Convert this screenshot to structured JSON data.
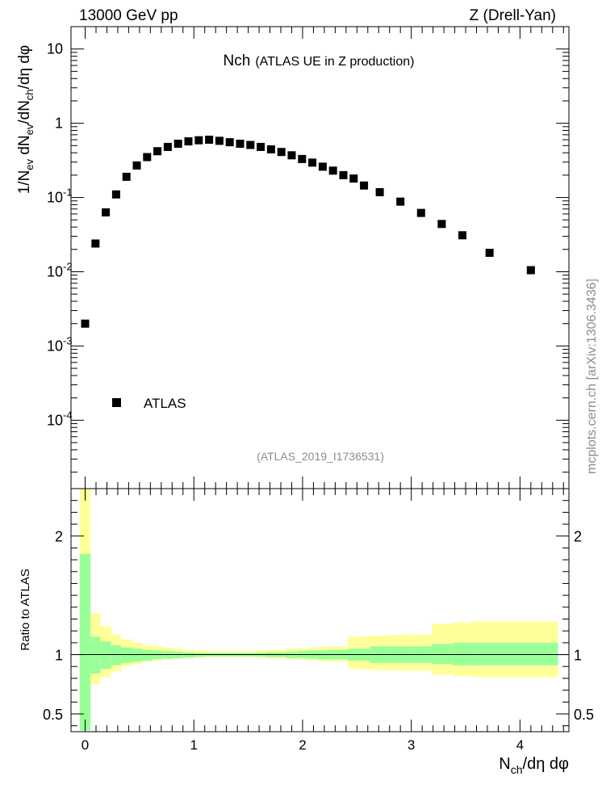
{
  "header": {
    "left": "13000 GeV pp",
    "right": "Z (Drell-Yan)"
  },
  "plot_title": {
    "main": "Nch",
    "sub": "(ATLAS UE in Z production)"
  },
  "analysis_tag": "(ATLAS_2019_I1736531)",
  "side_text": "mcplots.cern.ch [arXiv:1306.3436]",
  "legend": {
    "label": "ATLAS"
  },
  "colors": {
    "band_inner": "#99ff99",
    "band_outer": "#ffff99",
    "marker": "#000000"
  },
  "chart_data": [
    {
      "type": "scatter",
      "panel": "main",
      "xlabel": "N_ch/dη dφ",
      "ylabel": "1/N_ev dN_ev/dN_ch/dη dφ",
      "yscale": "log",
      "xlim": [
        -0.13,
        4.45
      ],
      "ylim": [
        1.2e-05,
        20
      ],
      "x_ticks": [
        "0",
        "1",
        "2",
        "3",
        "4"
      ],
      "y_ticks": [
        "10",
        "1",
        "10^-1",
        "10^-2",
        "10^-3",
        "10^-4"
      ],
      "series": [
        {
          "name": "ATLAS",
          "x": [
            0.0,
            0.095,
            0.19,
            0.285,
            0.38,
            0.475,
            0.57,
            0.665,
            0.76,
            0.855,
            0.95,
            1.045,
            1.14,
            1.235,
            1.33,
            1.425,
            1.52,
            1.615,
            1.71,
            1.805,
            1.9,
            1.995,
            2.09,
            2.185,
            2.28,
            2.375,
            2.47,
            2.565,
            2.71,
            2.9,
            3.09,
            3.28,
            3.47,
            3.72,
            4.1
          ],
          "y": [
            0.002,
            0.024,
            0.063,
            0.11,
            0.19,
            0.27,
            0.35,
            0.42,
            0.48,
            0.53,
            0.57,
            0.59,
            0.6,
            0.58,
            0.555,
            0.53,
            0.51,
            0.48,
            0.445,
            0.41,
            0.37,
            0.33,
            0.295,
            0.26,
            0.23,
            0.2,
            0.18,
            0.145,
            0.118,
            0.088,
            0.062,
            0.044,
            0.031,
            0.018,
            0.0105
          ]
        }
      ]
    },
    {
      "type": "area",
      "panel": "ratio",
      "xlabel": "N_ch/dη dφ",
      "ylabel": "Ratio to ATLAS",
      "ylim": [
        0.35,
        2.4
      ],
      "y_ticks": [
        "0.5",
        "1",
        "2"
      ],
      "reference_line": 1,
      "bins": [
        [
          -0.05,
          0.05
        ],
        [
          0.05,
          0.14
        ],
        [
          0.14,
          0.24
        ],
        [
          0.24,
          0.33
        ],
        [
          0.33,
          0.43
        ],
        [
          0.43,
          0.52
        ],
        [
          0.52,
          0.62
        ],
        [
          0.62,
          0.71
        ],
        [
          0.71,
          0.81
        ],
        [
          0.81,
          0.9
        ],
        [
          0.9,
          1.0
        ],
        [
          1.0,
          1.09
        ],
        [
          1.09,
          1.19
        ],
        [
          1.19,
          1.28
        ],
        [
          1.28,
          1.38
        ],
        [
          1.38,
          1.47
        ],
        [
          1.47,
          1.57
        ],
        [
          1.57,
          1.66
        ],
        [
          1.66,
          1.76
        ],
        [
          1.76,
          1.85
        ],
        [
          1.85,
          1.95
        ],
        [
          1.95,
          2.04
        ],
        [
          2.04,
          2.14
        ],
        [
          2.14,
          2.23
        ],
        [
          2.23,
          2.33
        ],
        [
          2.33,
          2.42
        ],
        [
          2.42,
          2.52
        ],
        [
          2.52,
          2.62
        ],
        [
          2.62,
          2.81
        ],
        [
          2.81,
          3.0
        ],
        [
          3.0,
          3.19
        ],
        [
          3.19,
          3.38
        ],
        [
          3.38,
          3.57
        ],
        [
          3.57,
          3.86
        ],
        [
          3.86,
          4.35
        ]
      ],
      "series": [
        {
          "name": "stat",
          "lo": [
            0.36,
            0.84,
            0.88,
            0.91,
            0.93,
            0.94,
            0.95,
            0.96,
            0.965,
            0.97,
            0.975,
            0.98,
            0.985,
            0.985,
            0.985,
            0.985,
            0.985,
            0.985,
            0.98,
            0.98,
            0.97,
            0.97,
            0.965,
            0.96,
            0.96,
            0.96,
            0.95,
            0.95,
            0.93,
            0.93,
            0.93,
            0.92,
            0.91,
            0.91,
            0.91
          ],
          "hi": [
            1.85,
            1.15,
            1.11,
            1.08,
            1.06,
            1.05,
            1.04,
            1.035,
            1.03,
            1.025,
            1.02,
            1.015,
            1.015,
            1.015,
            1.015,
            1.015,
            1.015,
            1.015,
            1.02,
            1.02,
            1.025,
            1.03,
            1.035,
            1.035,
            1.04,
            1.04,
            1.05,
            1.05,
            1.07,
            1.07,
            1.07,
            1.09,
            1.1,
            1.1,
            1.1
          ]
        },
        {
          "name": "total",
          "lo": [
            0.36,
            0.75,
            0.81,
            0.86,
            0.9,
            0.92,
            0.94,
            0.95,
            0.96,
            0.965,
            0.97,
            0.975,
            0.98,
            0.98,
            0.98,
            0.98,
            0.98,
            0.975,
            0.97,
            0.97,
            0.96,
            0.955,
            0.95,
            0.945,
            0.94,
            0.94,
            0.88,
            0.875,
            0.87,
            0.865,
            0.865,
            0.83,
            0.82,
            0.81,
            0.81
          ],
          "hi": [
            2.4,
            1.35,
            1.24,
            1.17,
            1.13,
            1.1,
            1.08,
            1.07,
            1.06,
            1.05,
            1.04,
            1.035,
            1.03,
            1.03,
            1.03,
            1.03,
            1.03,
            1.035,
            1.04,
            1.04,
            1.05,
            1.055,
            1.06,
            1.065,
            1.07,
            1.07,
            1.15,
            1.155,
            1.16,
            1.165,
            1.17,
            1.26,
            1.27,
            1.28,
            1.28
          ]
        }
      ]
    }
  ]
}
